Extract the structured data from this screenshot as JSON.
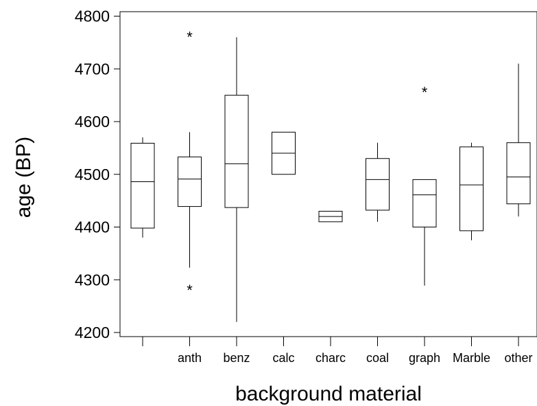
{
  "chart_data": {
    "type": "box",
    "xlabel": "background material",
    "ylabel": "age (BP)",
    "ylim": [
      4200,
      4800
    ],
    "yticks": [
      4200,
      4300,
      4400,
      4500,
      4600,
      4700,
      4800
    ],
    "grid": false,
    "categories": [
      "",
      "anth",
      "benz",
      "calc",
      "charc",
      "coal",
      "graph",
      "Marble",
      "other"
    ],
    "boxes": [
      {
        "category": "",
        "whisker_low": 4380,
        "q1": 4398,
        "median": 4486,
        "q3": 4559,
        "whisker_high": 4570,
        "outliers": []
      },
      {
        "category": "anth",
        "whisker_low": 4323,
        "q1": 4439,
        "median": 4491,
        "q3": 4533,
        "whisker_high": 4580,
        "outliers": [
          4761,
          4281
        ]
      },
      {
        "category": "benz",
        "whisker_low": 4220,
        "q1": 4437,
        "median": 4520,
        "q3": 4650,
        "whisker_high": 4760,
        "outliers": []
      },
      {
        "category": "calc",
        "whisker_low": 4500,
        "q1": 4500,
        "median": 4540,
        "q3": 4580,
        "whisker_high": 4580,
        "outliers": []
      },
      {
        "category": "charc",
        "whisker_low": 4410,
        "q1": 4410,
        "median": 4420,
        "q3": 4430,
        "whisker_high": 4430,
        "outliers": []
      },
      {
        "category": "coal",
        "whisker_low": 4410,
        "q1": 4432,
        "median": 4490,
        "q3": 4530,
        "whisker_high": 4560,
        "outliers": []
      },
      {
        "category": "graph",
        "whisker_low": 4289,
        "q1": 4400,
        "median": 4461,
        "q3": 4490,
        "whisker_high": 4490,
        "outliers": [
          4656
        ]
      },
      {
        "category": "Marble",
        "whisker_low": 4375,
        "q1": 4393,
        "median": 4480,
        "q3": 4552,
        "whisker_high": 4560,
        "outliers": []
      },
      {
        "category": "other",
        "whisker_low": 4420,
        "q1": 4444,
        "median": 4495,
        "q3": 4560,
        "whisker_high": 4710,
        "outliers": []
      }
    ]
  }
}
